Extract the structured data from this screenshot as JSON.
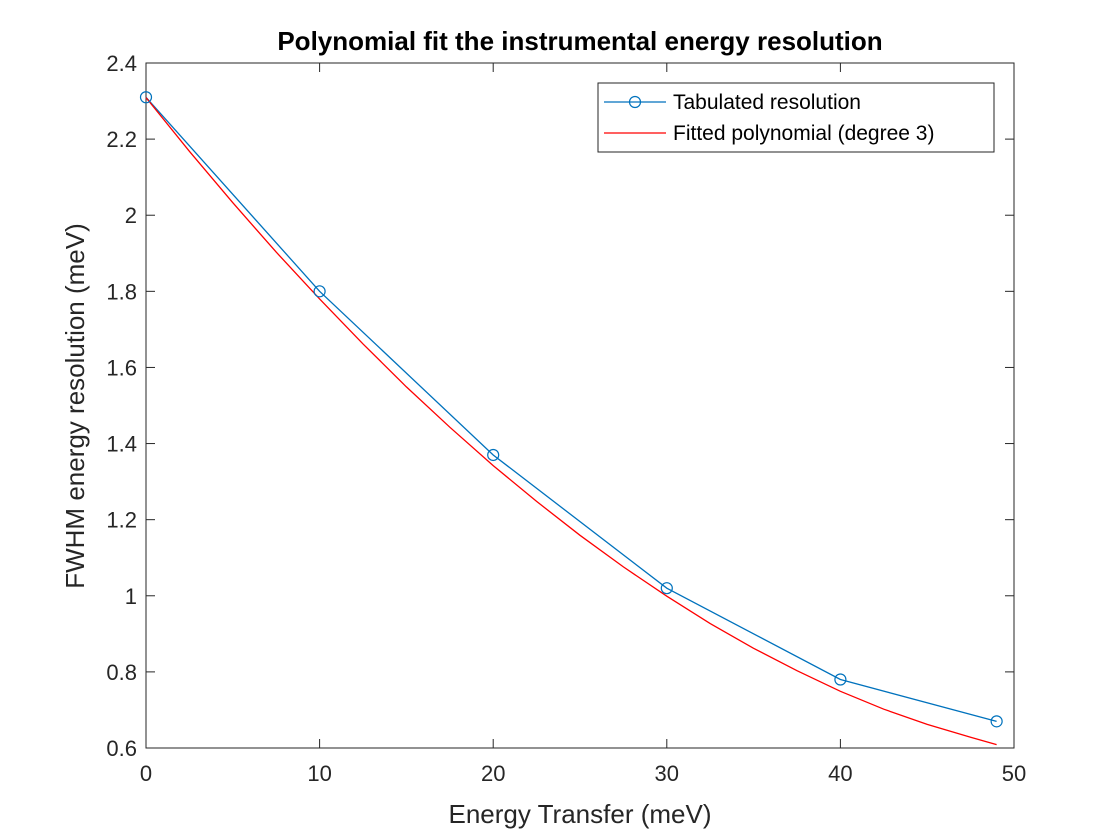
{
  "chart_data": {
    "type": "line",
    "title": "Polynomial fit the instrumental energy resolution",
    "xlabel": "Energy Transfer (meV)",
    "ylabel": "FWHM energy resolution (meV)",
    "xlim": [
      0,
      50
    ],
    "ylim": [
      0.6,
      2.4
    ],
    "xticks": [
      0,
      10,
      20,
      30,
      40,
      50
    ],
    "xtick_labels": [
      "0",
      "10",
      "20",
      "30",
      "40",
      "50"
    ],
    "yticks": [
      0.6,
      0.8,
      1.0,
      1.2,
      1.4,
      1.6,
      1.8,
      2.0,
      2.2,
      2.4
    ],
    "ytick_labels": [
      "0.6",
      "0.8",
      "1",
      "1.2",
      "1.4",
      "1.6",
      "1.8",
      "2",
      "2.2",
      "2.4"
    ],
    "grid": false,
    "legend_position": "top-right",
    "series": [
      {
        "name": "Tabulated resolution",
        "style": "line-with-circle-markers",
        "color": "#0072BD",
        "x": [
          0,
          10,
          20,
          30,
          40,
          49
        ],
        "y": [
          2.31,
          1.8,
          1.37,
          1.02,
          0.78,
          0.67
        ]
      },
      {
        "name": "Fitted polynomial (degree 3)",
        "style": "line",
        "color": "#FF0000",
        "x": [
          0,
          2.5,
          5,
          7.5,
          10,
          12.5,
          15,
          17.5,
          20,
          22.5,
          25,
          27.5,
          30,
          32.5,
          35,
          37.5,
          40,
          42.5,
          45,
          47.5,
          49
        ],
        "y": [
          2.309,
          2.168,
          2.033,
          1.903,
          1.78,
          1.662,
          1.549,
          1.443,
          1.342,
          1.248,
          1.159,
          1.076,
          0.999,
          0.927,
          0.862,
          0.803,
          0.749,
          0.702,
          0.662,
          0.628,
          0.609
        ]
      }
    ]
  }
}
